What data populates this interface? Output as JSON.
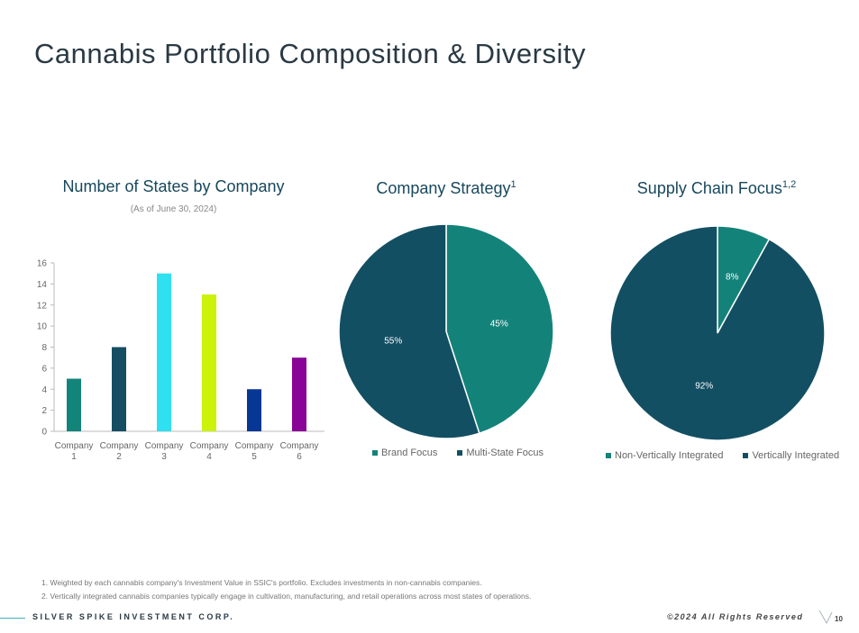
{
  "title": "Cannabis Portfolio Composition & Diversity",
  "chart_data": [
    {
      "type": "bar",
      "title": "Number of States by Company",
      "subtitle": "(As of June 30, 2024)",
      "categories": [
        [
          "Company",
          "1"
        ],
        [
          "Company",
          "2"
        ],
        [
          "Company",
          "3"
        ],
        [
          "Company",
          "4"
        ],
        [
          "Company",
          "5"
        ],
        [
          "Company",
          "6"
        ]
      ],
      "values": [
        5,
        8,
        15,
        13,
        4,
        7
      ],
      "colors": [
        "#13847a",
        "#154e62",
        "#2ee0f0",
        "#ccf20a",
        "#073795",
        "#880396"
      ],
      "ylim": [
        0,
        16
      ],
      "yticks": [
        "0",
        "2",
        "4",
        "6",
        "8",
        "10",
        "12",
        "14",
        "16"
      ],
      "xlabel": "",
      "ylabel": "",
      "grid": false
    },
    {
      "type": "pie",
      "title": "Company Strategy",
      "title_sup": "1",
      "labels": [
        "Brand Focus",
        "Multi-State Focus"
      ],
      "values": [
        45,
        55
      ],
      "value_labels": [
        "45%",
        "55%"
      ],
      "colors": [
        "#13837a",
        "#134f63"
      ],
      "legend_position": "bottom"
    },
    {
      "type": "pie",
      "title": "Supply Chain Focus",
      "title_sup": "1,2",
      "labels": [
        "Non-Vertically Integrated",
        "Vertically Integrated"
      ],
      "values": [
        8,
        92
      ],
      "value_labels": [
        "8%",
        "92%"
      ],
      "colors": [
        "#13837a",
        "#134f63"
      ],
      "legend_position": "bottom"
    }
  ],
  "footnotes": [
    "1. Weighted by each cannabis company's Investment Value in SSIC's portfolio. Excludes investments in non-cannabis companies.",
    "2. Vertically integrated cannabis companies typically engage in cultivation, manufacturing, and retail operations across most states of operations."
  ],
  "footer": {
    "company": "SILVER SPIKE INVESTMENT CORP.",
    "copyright": "©2024 All Rights Reserved",
    "page_number": "10"
  }
}
